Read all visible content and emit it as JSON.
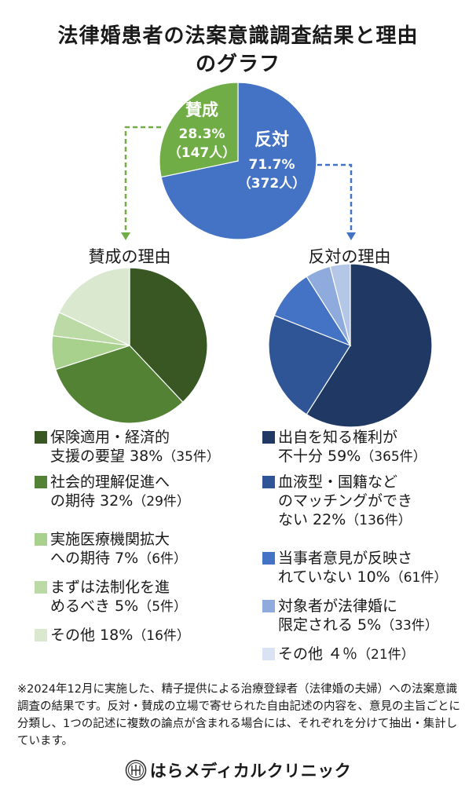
{
  "title": {
    "line1": "法律婚患者の法案意識調査結果と理由",
    "line2": "のグラフ"
  },
  "colors": {
    "main_agree": "#70ad47",
    "main_oppose": "#4472c4",
    "arrow_green": "#70ad47",
    "arrow_blue": "#4472c4",
    "text_dark": "#1a1a1a",
    "white": "#ffffff"
  },
  "chart_data": [
    {
      "type": "pie",
      "slices": [
        {
          "label": "反対",
          "pct_label": "71.7%",
          "count_label": "（372人）",
          "value": 71.7,
          "color": "#4472c4"
        },
        {
          "label": "賛成",
          "pct_label": "28.3%",
          "count_label": "（147人）",
          "value": 28.3,
          "color": "#70ad47"
        }
      ]
    },
    {
      "type": "pie",
      "title": "賛成の理由",
      "slices": [
        {
          "label_lines": [
            "保険適用・経済的",
            "支援の要望"
          ],
          "pct": "38%",
          "count": "（35件）",
          "value": 38,
          "color": "#385723"
        },
        {
          "label_lines": [
            "社会的理解促進へ",
            "の期待"
          ],
          "pct": "32%",
          "count": "（29件）",
          "value": 32,
          "color": "#548235"
        },
        {
          "label_lines": [
            "実施医療機関拡大",
            "への期待"
          ],
          "pct": "7%",
          "count": "（6件）",
          "value": 7,
          "color": "#a9d18e"
        },
        {
          "label_lines": [
            "まずは法制化を進",
            "めるべき"
          ],
          "pct": "5%",
          "count": "（5件）",
          "value": 5,
          "color": "#bcdaa6"
        },
        {
          "label_lines": [
            "その他"
          ],
          "pct": "18%",
          "count": "（16件）",
          "value": 18,
          "color": "#d9e8cf"
        }
      ]
    },
    {
      "type": "pie",
      "title": "反対の理由",
      "slices": [
        {
          "label_lines": [
            "出自を知る権利が",
            "不十分"
          ],
          "pct": "59%",
          "count": "（365件）",
          "value": 59,
          "color": "#1f3864"
        },
        {
          "label_lines": [
            "血液型・国籍など",
            "のマッチングができ",
            "ない"
          ],
          "pct": "22%",
          "count": "（136件）",
          "value": 22,
          "color": "#2f5597"
        },
        {
          "label_lines": [
            "当事者意見が反映さ",
            "れていない"
          ],
          "pct": "10%",
          "count": "（61件）",
          "value": 10,
          "color": "#4472c4"
        },
        {
          "label_lines": [
            "対象者が法律婚に",
            "限定される"
          ],
          "pct": "5%",
          "count": "（33件）",
          "value": 5,
          "color": "#8faadc"
        },
        {
          "label_lines": [
            "その他"
          ],
          "pct": "４％",
          "count": "（21件）",
          "value": 4,
          "color": "#b4c7e7"
        }
      ]
    }
  ],
  "legend_right_other_swatch": "#dae3f3",
  "note": "※2024年12月に実施した、精子提供による治療登録者（法律婚の夫婦）への法案意識調査の結果です。反対・賛成の立場で寄せられた自由記述の内容を、意見の主旨ごとに分類し、1つの記述に複数の論点が含まれる場合には、それぞれを分けて抽出・集計しています。",
  "footer": {
    "clinic_name": "はらメディカルクリニック",
    "logo_icon": "clinic-crest-icon"
  }
}
